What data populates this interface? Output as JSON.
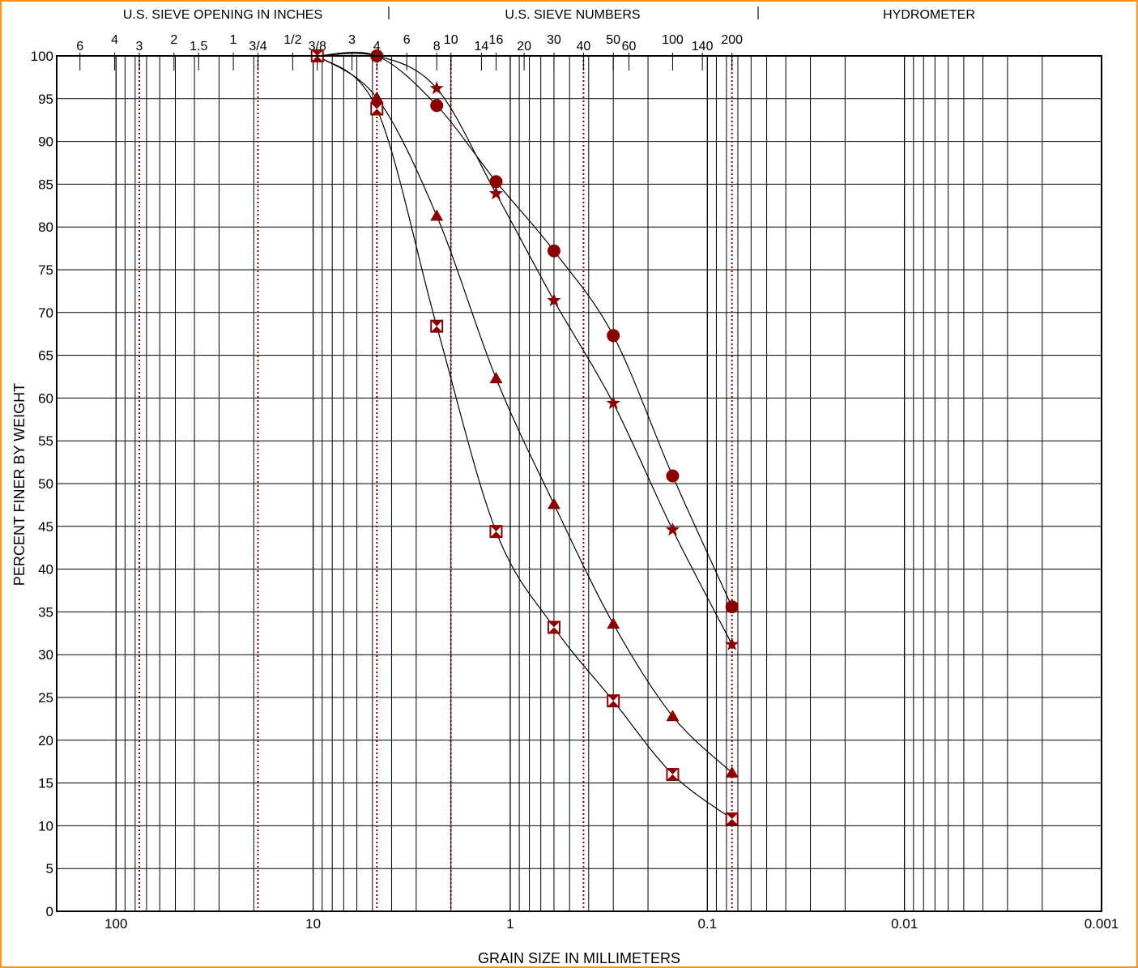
{
  "colors": {
    "frame": "#f7931e",
    "marker": "#8b0000",
    "grid": "#000000",
    "reference": "#8b0000"
  },
  "header": {
    "inches": "U.S. SIEVE OPENING IN INCHES",
    "numbers": "U.S. SIEVE NUMBERS",
    "hydrometer": "HYDROMETER"
  },
  "chart_data": {
    "type": "scatter",
    "title": "",
    "xlabel": "GRAIN SIZE IN MILLIMETERS",
    "ylabel": "PERCENT FINER BY WEIGHT",
    "x_scale": "log",
    "x_reversed": true,
    "xlim": [
      200,
      0.001
    ],
    "ylim": [
      0,
      100
    ],
    "grid": true,
    "x_ticks": [
      {
        "value": 100,
        "label": "100"
      },
      {
        "value": 10,
        "label": "10"
      },
      {
        "value": 1,
        "label": "1"
      },
      {
        "value": 0.1,
        "label": "0.1"
      },
      {
        "value": 0.01,
        "label": "0.01"
      },
      {
        "value": 0.001,
        "label": "0.001"
      }
    ],
    "y_ticks": [
      0,
      5,
      10,
      15,
      20,
      25,
      30,
      35,
      40,
      45,
      50,
      55,
      60,
      65,
      70,
      75,
      80,
      85,
      90,
      95,
      100
    ],
    "top_inch_labels": [
      {
        "label": "6",
        "mm": 152.4
      },
      {
        "label": "4",
        "mm": 101.6
      },
      {
        "label": "3",
        "mm": 76.2
      },
      {
        "label": "2",
        "mm": 50.8
      },
      {
        "label": "1.5",
        "mm": 38.1
      },
      {
        "label": "1",
        "mm": 25.4
      },
      {
        "label": "3/4",
        "mm": 19.05
      },
      {
        "label": "1/2",
        "mm": 12.7
      },
      {
        "label": "3/8",
        "mm": 9.525
      }
    ],
    "top_sieve_labels": [
      {
        "label": "3",
        "mm": 6.35
      },
      {
        "label": "4",
        "mm": 4.75
      },
      {
        "label": "6",
        "mm": 3.35
      },
      {
        "label": "8",
        "mm": 2.36
      },
      {
        "label": "10",
        "mm": 2.0
      },
      {
        "label": "14",
        "mm": 1.4
      },
      {
        "label": "16",
        "mm": 1.18
      },
      {
        "label": "20",
        "mm": 0.85
      },
      {
        "label": "30",
        "mm": 0.6
      },
      {
        "label": "40",
        "mm": 0.425
      },
      {
        "label": "50",
        "mm": 0.3
      },
      {
        "label": "60",
        "mm": 0.25
      },
      {
        "label": "100",
        "mm": 0.15
      },
      {
        "label": "140",
        "mm": 0.106
      },
      {
        "label": "200",
        "mm": 0.075
      }
    ],
    "reference_lines_mm": [
      76.2,
      19.05,
      4.75,
      2.0,
      0.425,
      0.075
    ],
    "series": [
      {
        "marker": "circle",
        "points": [
          [
            9.525,
            100
          ],
          [
            4.75,
            100
          ],
          [
            2.36,
            94.2
          ],
          [
            1.18,
            85.3
          ],
          [
            0.6,
            77.2
          ],
          [
            0.3,
            67.3
          ],
          [
            0.15,
            50.9
          ],
          [
            0.075,
            35.6
          ]
        ]
      },
      {
        "marker": "star",
        "points": [
          [
            9.525,
            100
          ],
          [
            4.75,
            100
          ],
          [
            2.36,
            96.2
          ],
          [
            1.18,
            83.9
          ],
          [
            0.6,
            71.4
          ],
          [
            0.3,
            59.4
          ],
          [
            0.15,
            44.6
          ],
          [
            0.075,
            31.2
          ]
        ]
      },
      {
        "marker": "triangle",
        "points": [
          [
            9.525,
            100
          ],
          [
            4.75,
            95.1
          ],
          [
            2.36,
            81.3
          ],
          [
            1.18,
            62.3
          ],
          [
            0.6,
            47.6
          ],
          [
            0.3,
            33.6
          ],
          [
            0.15,
            22.8
          ],
          [
            0.075,
            16.2
          ]
        ]
      },
      {
        "marker": "hourglass-square",
        "points": [
          [
            9.525,
            100
          ],
          [
            4.75,
            93.8
          ],
          [
            2.36,
            68.4
          ],
          [
            1.18,
            44.4
          ],
          [
            0.6,
            33.2
          ],
          [
            0.3,
            24.6
          ],
          [
            0.15,
            16.0
          ],
          [
            0.075,
            10.8
          ]
        ]
      }
    ]
  }
}
